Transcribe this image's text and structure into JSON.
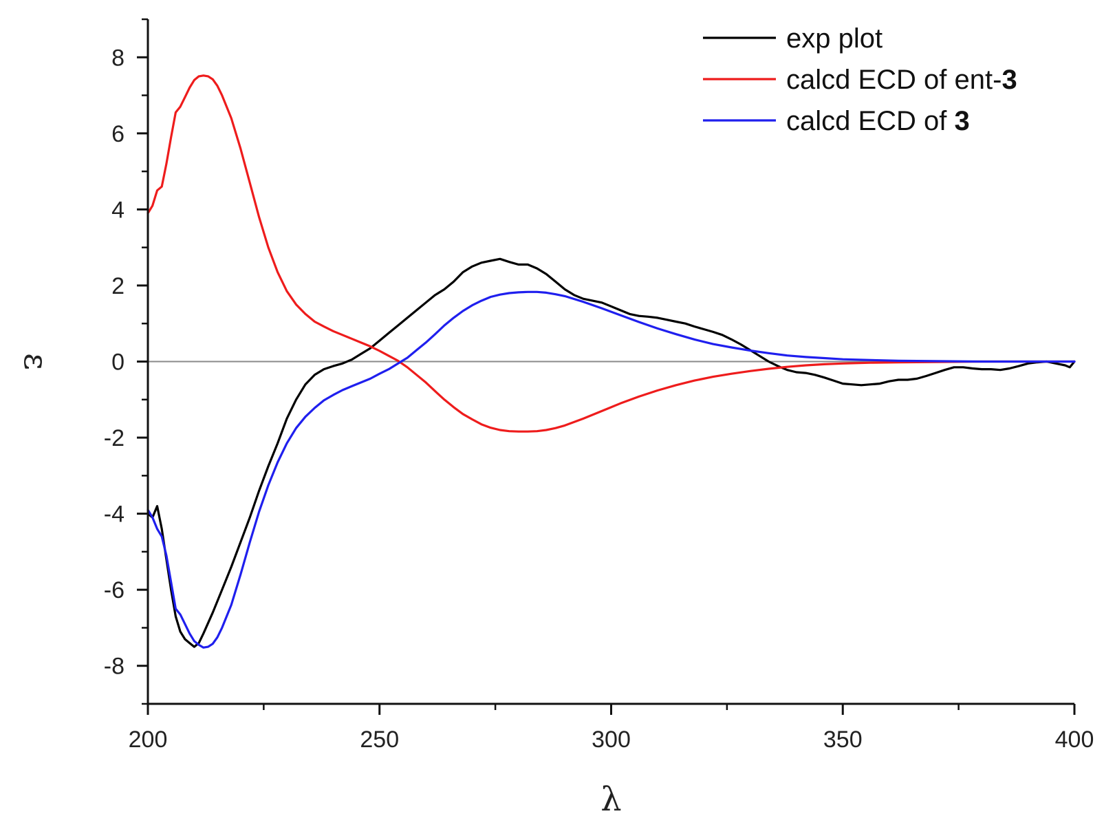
{
  "chart_data": {
    "type": "line",
    "xlabel": "λ",
    "ylabel": "ε",
    "xlim": [
      200,
      400
    ],
    "ylim": [
      -9,
      9
    ],
    "xticks": [
      200,
      250,
      300,
      350,
      400
    ],
    "yticks": [
      -8,
      -6,
      -4,
      -2,
      0,
      2,
      4,
      6,
      8
    ],
    "x_minor_step": 25,
    "y_minor_step": 1,
    "zero_line": true,
    "legend_position": "top-right",
    "series": [
      {
        "name": "exp plot",
        "name_plain": "exp plot",
        "name_bold": "",
        "color": "#000000",
        "points": [
          [
            200,
            -4.0
          ],
          [
            201,
            -4.1
          ],
          [
            202,
            -3.8
          ],
          [
            203,
            -4.4
          ],
          [
            204,
            -5.2
          ],
          [
            205,
            -6.0
          ],
          [
            206,
            -6.7
          ],
          [
            207,
            -7.1
          ],
          [
            208,
            -7.3
          ],
          [
            209,
            -7.4
          ],
          [
            210,
            -7.5
          ],
          [
            211,
            -7.4
          ],
          [
            212,
            -7.15
          ],
          [
            214,
            -6.6
          ],
          [
            216,
            -6.0
          ],
          [
            218,
            -5.4
          ],
          [
            220,
            -4.75
          ],
          [
            222,
            -4.1
          ],
          [
            224,
            -3.4
          ],
          [
            226,
            -2.75
          ],
          [
            228,
            -2.15
          ],
          [
            230,
            -1.5
          ],
          [
            232,
            -1.0
          ],
          [
            234,
            -0.6
          ],
          [
            236,
            -0.35
          ],
          [
            238,
            -0.2
          ],
          [
            240,
            -0.12
          ],
          [
            242,
            -0.05
          ],
          [
            244,
            0.05
          ],
          [
            246,
            0.2
          ],
          [
            248,
            0.35
          ],
          [
            250,
            0.55
          ],
          [
            252,
            0.75
          ],
          [
            254,
            0.95
          ],
          [
            256,
            1.15
          ],
          [
            258,
            1.35
          ],
          [
            260,
            1.55
          ],
          [
            262,
            1.75
          ],
          [
            264,
            1.9
          ],
          [
            266,
            2.1
          ],
          [
            268,
            2.35
          ],
          [
            270,
            2.5
          ],
          [
            272,
            2.6
          ],
          [
            274,
            2.65
          ],
          [
            276,
            2.7
          ],
          [
            278,
            2.62
          ],
          [
            280,
            2.55
          ],
          [
            282,
            2.55
          ],
          [
            284,
            2.45
          ],
          [
            286,
            2.3
          ],
          [
            288,
            2.1
          ],
          [
            290,
            1.9
          ],
          [
            292,
            1.75
          ],
          [
            294,
            1.65
          ],
          [
            296,
            1.6
          ],
          [
            298,
            1.55
          ],
          [
            300,
            1.45
          ],
          [
            302,
            1.35
          ],
          [
            304,
            1.25
          ],
          [
            306,
            1.2
          ],
          [
            308,
            1.18
          ],
          [
            310,
            1.15
          ],
          [
            312,
            1.1
          ],
          [
            314,
            1.05
          ],
          [
            316,
            1.0
          ],
          [
            318,
            0.92
          ],
          [
            320,
            0.85
          ],
          [
            322,
            0.78
          ],
          [
            324,
            0.7
          ],
          [
            326,
            0.58
          ],
          [
            328,
            0.45
          ],
          [
            330,
            0.3
          ],
          [
            332,
            0.15
          ],
          [
            334,
            0.0
          ],
          [
            336,
            -0.12
          ],
          [
            338,
            -0.22
          ],
          [
            340,
            -0.28
          ],
          [
            342,
            -0.3
          ],
          [
            344,
            -0.35
          ],
          [
            346,
            -0.42
          ],
          [
            348,
            -0.5
          ],
          [
            350,
            -0.58
          ],
          [
            352,
            -0.6
          ],
          [
            354,
            -0.62
          ],
          [
            356,
            -0.6
          ],
          [
            358,
            -0.58
          ],
          [
            360,
            -0.52
          ],
          [
            362,
            -0.48
          ],
          [
            364,
            -0.48
          ],
          [
            366,
            -0.45
          ],
          [
            368,
            -0.38
          ],
          [
            370,
            -0.3
          ],
          [
            372,
            -0.22
          ],
          [
            374,
            -0.15
          ],
          [
            376,
            -0.15
          ],
          [
            378,
            -0.18
          ],
          [
            380,
            -0.2
          ],
          [
            382,
            -0.2
          ],
          [
            384,
            -0.22
          ],
          [
            386,
            -0.18
          ],
          [
            388,
            -0.12
          ],
          [
            390,
            -0.05
          ],
          [
            392,
            -0.02
          ],
          [
            394,
            0.0
          ],
          [
            396,
            -0.05
          ],
          [
            398,
            -0.1
          ],
          [
            399,
            -0.15
          ],
          [
            400,
            0.0
          ]
        ]
      },
      {
        "name": "calcd ECD of ent-3",
        "name_plain": "calcd ECD of ent-",
        "name_bold": "3",
        "color": "#ee1c1c",
        "points": [
          [
            200,
            3.9
          ],
          [
            201,
            4.1
          ],
          [
            202,
            4.5
          ],
          [
            203,
            4.6
          ],
          [
            204,
            5.2
          ],
          [
            205,
            5.9
          ],
          [
            206,
            6.55
          ],
          [
            207,
            6.7
          ],
          [
            208,
            6.95
          ],
          [
            209,
            7.2
          ],
          [
            210,
            7.4
          ],
          [
            211,
            7.5
          ],
          [
            212,
            7.52
          ],
          [
            213,
            7.5
          ],
          [
            214,
            7.42
          ],
          [
            215,
            7.25
          ],
          [
            216,
            7.0
          ],
          [
            218,
            6.4
          ],
          [
            220,
            5.6
          ],
          [
            222,
            4.7
          ],
          [
            224,
            3.8
          ],
          [
            226,
            3.0
          ],
          [
            228,
            2.35
          ],
          [
            230,
            1.85
          ],
          [
            232,
            1.5
          ],
          [
            234,
            1.25
          ],
          [
            236,
            1.05
          ],
          [
            238,
            0.92
          ],
          [
            240,
            0.8
          ],
          [
            242,
            0.7
          ],
          [
            244,
            0.6
          ],
          [
            246,
            0.5
          ],
          [
            248,
            0.4
          ],
          [
            250,
            0.28
          ],
          [
            252,
            0.15
          ],
          [
            254,
            0.02
          ],
          [
            256,
            -0.15
          ],
          [
            258,
            -0.35
          ],
          [
            260,
            -0.55
          ],
          [
            262,
            -0.78
          ],
          [
            264,
            -1.0
          ],
          [
            266,
            -1.2
          ],
          [
            268,
            -1.38
          ],
          [
            270,
            -1.52
          ],
          [
            272,
            -1.65
          ],
          [
            274,
            -1.74
          ],
          [
            276,
            -1.8
          ],
          [
            278,
            -1.83
          ],
          [
            280,
            -1.84
          ],
          [
            282,
            -1.84
          ],
          [
            284,
            -1.83
          ],
          [
            286,
            -1.8
          ],
          [
            288,
            -1.75
          ],
          [
            290,
            -1.68
          ],
          [
            294,
            -1.5
          ],
          [
            298,
            -1.3
          ],
          [
            302,
            -1.1
          ],
          [
            306,
            -0.92
          ],
          [
            310,
            -0.76
          ],
          [
            314,
            -0.62
          ],
          [
            318,
            -0.5
          ],
          [
            322,
            -0.4
          ],
          [
            326,
            -0.32
          ],
          [
            330,
            -0.25
          ],
          [
            334,
            -0.19
          ],
          [
            338,
            -0.14
          ],
          [
            342,
            -0.1
          ],
          [
            346,
            -0.07
          ],
          [
            350,
            -0.05
          ],
          [
            356,
            -0.03
          ],
          [
            362,
            -0.02
          ],
          [
            370,
            -0.01
          ],
          [
            380,
            0.0
          ],
          [
            390,
            0.0
          ],
          [
            400,
            0.0
          ]
        ]
      },
      {
        "name": "calcd ECD of 3",
        "name_plain": "calcd ECD of ",
        "name_bold": "3",
        "color": "#1f1fee",
        "points": [
          [
            200,
            -3.9
          ],
          [
            201,
            -4.1
          ],
          [
            202,
            -4.4
          ],
          [
            203,
            -4.6
          ],
          [
            204,
            -5.1
          ],
          [
            205,
            -5.8
          ],
          [
            206,
            -6.5
          ],
          [
            207,
            -6.65
          ],
          [
            208,
            -6.9
          ],
          [
            209,
            -7.15
          ],
          [
            210,
            -7.35
          ],
          [
            211,
            -7.45
          ],
          [
            212,
            -7.52
          ],
          [
            213,
            -7.5
          ],
          [
            214,
            -7.42
          ],
          [
            215,
            -7.25
          ],
          [
            216,
            -7.0
          ],
          [
            218,
            -6.4
          ],
          [
            220,
            -5.6
          ],
          [
            222,
            -4.75
          ],
          [
            224,
            -3.95
          ],
          [
            226,
            -3.25
          ],
          [
            228,
            -2.65
          ],
          [
            230,
            -2.15
          ],
          [
            232,
            -1.75
          ],
          [
            234,
            -1.45
          ],
          [
            236,
            -1.22
          ],
          [
            238,
            -1.02
          ],
          [
            240,
            -0.88
          ],
          [
            242,
            -0.75
          ],
          [
            244,
            -0.65
          ],
          [
            246,
            -0.55
          ],
          [
            248,
            -0.45
          ],
          [
            250,
            -0.32
          ],
          [
            252,
            -0.2
          ],
          [
            254,
            -0.05
          ],
          [
            256,
            0.1
          ],
          [
            258,
            0.3
          ],
          [
            260,
            0.5
          ],
          [
            262,
            0.72
          ],
          [
            264,
            0.95
          ],
          [
            266,
            1.15
          ],
          [
            268,
            1.33
          ],
          [
            270,
            1.48
          ],
          [
            272,
            1.6
          ],
          [
            274,
            1.7
          ],
          [
            276,
            1.76
          ],
          [
            278,
            1.8
          ],
          [
            280,
            1.82
          ],
          [
            282,
            1.83
          ],
          [
            284,
            1.83
          ],
          [
            286,
            1.81
          ],
          [
            288,
            1.77
          ],
          [
            290,
            1.72
          ],
          [
            294,
            1.57
          ],
          [
            298,
            1.4
          ],
          [
            302,
            1.22
          ],
          [
            306,
            1.04
          ],
          [
            310,
            0.87
          ],
          [
            314,
            0.72
          ],
          [
            318,
            0.58
          ],
          [
            322,
            0.46
          ],
          [
            326,
            0.37
          ],
          [
            330,
            0.29
          ],
          [
            334,
            0.22
          ],
          [
            338,
            0.16
          ],
          [
            342,
            0.12
          ],
          [
            346,
            0.09
          ],
          [
            350,
            0.06
          ],
          [
            356,
            0.04
          ],
          [
            362,
            0.02
          ],
          [
            370,
            0.01
          ],
          [
            380,
            0.0
          ],
          [
            390,
            0.0
          ],
          [
            400,
            0.0
          ]
        ]
      }
    ]
  }
}
